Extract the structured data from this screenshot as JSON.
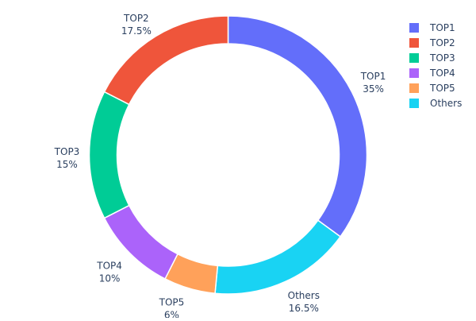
{
  "chart_data": {
    "type": "pie",
    "hole": true,
    "slices": [
      {
        "label": "TOP1",
        "value": 35,
        "text": "35%",
        "color": "#636efa"
      },
      {
        "label": "TOP2",
        "value": 17.5,
        "text": "17.5%",
        "color": "#EF553B"
      },
      {
        "label": "TOP3",
        "value": 15,
        "text": "15%",
        "color": "#00cc96"
      },
      {
        "label": "TOP4",
        "value": 10,
        "text": "10%",
        "color": "#ab63fa"
      },
      {
        "label": "TOP5",
        "value": 6,
        "text": "6%",
        "color": "#FFA15A"
      },
      {
        "label": "Others",
        "value": 16.5,
        "text": "16.5%",
        "color": "#19d3f3"
      }
    ],
    "draw_order": [
      "TOP1",
      "Others",
      "TOP5",
      "TOP4",
      "TOP3",
      "TOP2"
    ],
    "legend_position": "top-right"
  }
}
